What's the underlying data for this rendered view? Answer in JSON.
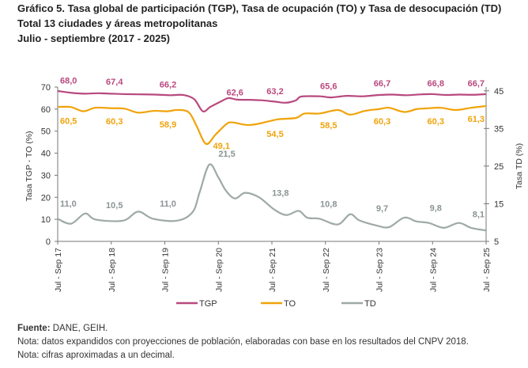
{
  "title": {
    "line1": "Gráfico 5. Tasa global de participación (TGP), Tasa de ocupación (TO) y Tasa de desocupación (TD)",
    "line2": "Total 13 ciudades y áreas metropolitanas",
    "line3": "Julio - septiembre (2017 - 2025)"
  },
  "chart_data": {
    "type": "line",
    "ylabel_left": "Tasa TGP - TO (%)",
    "ylabel_right": "Tasa TD (%)",
    "ylim_left": [
      0,
      70
    ],
    "yticks_left": [
      0,
      10,
      20,
      30,
      40,
      50,
      60,
      70
    ],
    "ylim_right": [
      5,
      46
    ],
    "yticks_right": [
      5,
      15,
      25,
      35,
      45
    ],
    "xlim": [
      2017.5,
      2025.5
    ],
    "xticks": [
      {
        "x": 2017.5,
        "label": "Jul - Sep 17"
      },
      {
        "x": 2018.5,
        "label": "Jul - Sep 18"
      },
      {
        "x": 2019.5,
        "label": "Jul - Sep 19"
      },
      {
        "x": 2020.5,
        "label": "Jul - Sep 20"
      },
      {
        "x": 2021.5,
        "label": "Jul - Sep 21"
      },
      {
        "x": 2022.5,
        "label": "Jul - Sep 22"
      },
      {
        "x": 2023.5,
        "label": "Jul - Sep 23"
      },
      {
        "x": 2024.5,
        "label": "Jul - Sep 24"
      },
      {
        "x": 2025.5,
        "label": "Jul - Sep 25"
      }
    ],
    "grid": false,
    "legend": "bottom",
    "series": [
      {
        "name": "TGP",
        "axis": "left",
        "color": "#b8497f",
        "points": [
          [
            2017.5,
            68.2
          ],
          [
            2017.75,
            67.4
          ],
          [
            2018.0,
            67.0
          ],
          [
            2018.25,
            67.2
          ],
          [
            2018.5,
            67.0
          ],
          [
            2018.75,
            66.8
          ],
          [
            2019.0,
            66.7
          ],
          [
            2019.3,
            66.6
          ],
          [
            2019.6,
            66.3
          ],
          [
            2019.85,
            66.4
          ],
          [
            2020.05,
            64.5
          ],
          [
            2020.21,
            59.0
          ],
          [
            2020.35,
            61.0
          ],
          [
            2020.55,
            63.5
          ],
          [
            2020.69,
            65.0
          ],
          [
            2020.85,
            64.3
          ],
          [
            2021.1,
            64.2
          ],
          [
            2021.3,
            64.0
          ],
          [
            2021.55,
            63.4
          ],
          [
            2021.77,
            62.9
          ],
          [
            2021.95,
            64.0
          ],
          [
            2022.05,
            65.7
          ],
          [
            2022.4,
            65.8
          ],
          [
            2022.6,
            65.3
          ],
          [
            2022.9,
            66.0
          ],
          [
            2023.2,
            65.8
          ],
          [
            2023.5,
            66.4
          ],
          [
            2023.75,
            66.6
          ],
          [
            2024.0,
            66.3
          ],
          [
            2024.3,
            66.7
          ],
          [
            2024.5,
            66.8
          ],
          [
            2024.75,
            66.4
          ],
          [
            2025.0,
            66.6
          ],
          [
            2025.25,
            66.5
          ],
          [
            2025.5,
            66.8
          ]
        ],
        "labels": [
          [
            2017.5,
            68.0
          ],
          [
            2018.5,
            67.4
          ],
          [
            2019.5,
            66.2
          ],
          [
            2020.75,
            62.6
          ],
          [
            2021.5,
            63.2
          ],
          [
            2022.5,
            65.6
          ],
          [
            2023.5,
            66.7
          ],
          [
            2024.5,
            66.8
          ],
          [
            2025.5,
            66.7
          ]
        ]
      },
      {
        "name": "TO",
        "axis": "left",
        "color": "#f0a30a",
        "points": [
          [
            2017.5,
            61.0
          ],
          [
            2017.75,
            60.9
          ],
          [
            2017.98,
            59.0
          ],
          [
            2018.2,
            60.6
          ],
          [
            2018.5,
            60.4
          ],
          [
            2018.75,
            60.2
          ],
          [
            2019.0,
            58.4
          ],
          [
            2019.3,
            59.2
          ],
          [
            2019.55,
            59.0
          ],
          [
            2019.73,
            59.6
          ],
          [
            2019.95,
            58.5
          ],
          [
            2020.1,
            52.0
          ],
          [
            2020.27,
            44.2
          ],
          [
            2020.45,
            48.5
          ],
          [
            2020.64,
            53.0
          ],
          [
            2020.75,
            54.0
          ],
          [
            2021.03,
            52.8
          ],
          [
            2021.26,
            53.4
          ],
          [
            2021.6,
            55.3
          ],
          [
            2021.95,
            56.0
          ],
          [
            2022.11,
            58.0
          ],
          [
            2022.39,
            58.0
          ],
          [
            2022.73,
            59.6
          ],
          [
            2022.96,
            57.5
          ],
          [
            2023.24,
            59.2
          ],
          [
            2023.5,
            60.0
          ],
          [
            2023.69,
            60.6
          ],
          [
            2023.97,
            58.7
          ],
          [
            2024.2,
            60.0
          ],
          [
            2024.37,
            60.3
          ],
          [
            2024.65,
            60.6
          ],
          [
            2024.93,
            59.6
          ],
          [
            2025.22,
            60.6
          ],
          [
            2025.5,
            61.4
          ]
        ],
        "labels": [
          [
            2017.5,
            60.5
          ],
          [
            2018.5,
            60.3
          ],
          [
            2019.5,
            58.9
          ],
          [
            2020.5,
            49.1
          ],
          [
            2021.5,
            54.5
          ],
          [
            2022.5,
            58.5
          ],
          [
            2023.5,
            60.3
          ],
          [
            2024.5,
            60.3
          ],
          [
            2025.5,
            61.3
          ]
        ]
      },
      {
        "name": "TD",
        "axis": "right",
        "color": "#9ea9a8",
        "points": [
          [
            2017.5,
            11.0
          ],
          [
            2017.75,
            9.7
          ],
          [
            2018.01,
            12.4
          ],
          [
            2018.21,
            10.8
          ],
          [
            2018.72,
            10.5
          ],
          [
            2019.0,
            12.9
          ],
          [
            2019.28,
            11.0
          ],
          [
            2019.73,
            10.5
          ],
          [
            2020.02,
            12.8
          ],
          [
            2020.15,
            18.0
          ],
          [
            2020.33,
            25.4
          ],
          [
            2020.5,
            22.0
          ],
          [
            2020.64,
            18.5
          ],
          [
            2020.81,
            16.4
          ],
          [
            2021.0,
            17.9
          ],
          [
            2021.26,
            16.7
          ],
          [
            2021.54,
            13.5
          ],
          [
            2021.77,
            12.0
          ],
          [
            2022.0,
            13.1
          ],
          [
            2022.16,
            11.3
          ],
          [
            2022.39,
            11.0
          ],
          [
            2022.73,
            9.5
          ],
          [
            2022.96,
            12.2
          ],
          [
            2023.13,
            10.6
          ],
          [
            2023.46,
            9.2
          ],
          [
            2023.69,
            8.8
          ],
          [
            2023.97,
            11.3
          ],
          [
            2024.2,
            10.3
          ],
          [
            2024.43,
            9.9
          ],
          [
            2024.71,
            8.6
          ],
          [
            2024.99,
            9.9
          ],
          [
            2025.22,
            8.6
          ],
          [
            2025.5,
            7.9
          ]
        ],
        "labels": [
          [
            2017.5,
            11.0
          ],
          [
            2018.5,
            10.5
          ],
          [
            2019.5,
            11.0
          ],
          [
            2020.6,
            21.5
          ],
          [
            2021.6,
            13.8
          ],
          [
            2022.5,
            10.8
          ],
          [
            2023.5,
            9.7
          ],
          [
            2024.5,
            9.8
          ],
          [
            2025.5,
            8.1
          ]
        ]
      }
    ]
  },
  "footer": {
    "source_label": "Fuente:",
    "source_value": " DANE, GEIH.",
    "note1": "Nota: datos expandidos con proyecciones de población, elaboradas con base en los resultados del CNPV 2018.",
    "note2": "Nota: cifras aproximadas a un decimal."
  }
}
